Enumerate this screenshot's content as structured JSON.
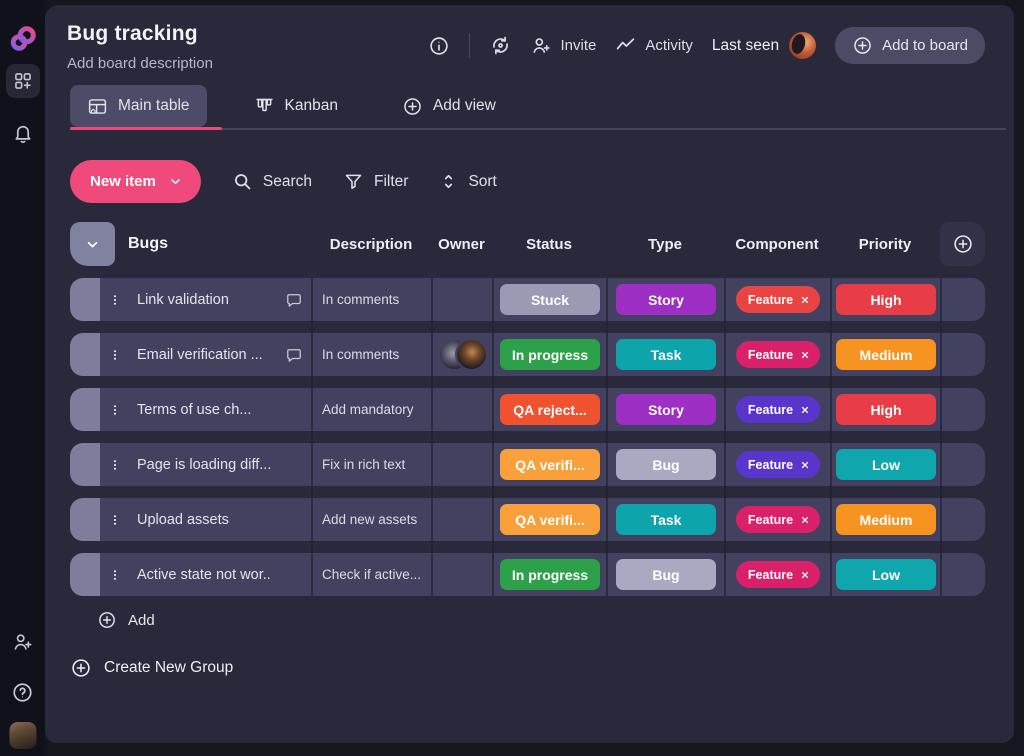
{
  "header": {
    "title": "Bug tracking",
    "description_placeholder": "Add board description",
    "invite_label": "Invite",
    "activity_label": "Activity",
    "last_seen_label": "Last seen",
    "add_to_board_label": "Add to board"
  },
  "tabs": {
    "main_table": "Main table",
    "kanban": "Kanban",
    "add_view": "Add view"
  },
  "toolbar": {
    "new_item_label": "New item",
    "search_label": "Search",
    "filter_label": "Filter",
    "sort_label": "Sort"
  },
  "table": {
    "group_title": "Bugs",
    "columns": {
      "description": "Description",
      "owner": "Owner",
      "status": "Status",
      "type": "Type",
      "component": "Component",
      "priority": "Priority"
    },
    "rows": [
      {
        "name": "Link validation",
        "description": "In comments",
        "status": {
          "label": "Stuck",
          "color": "#9a9ab5"
        },
        "type": {
          "label": "Story",
          "color": "#9e2fc4"
        },
        "component": {
          "label": "Feature",
          "color": "#e84444"
        },
        "priority": {
          "label": "High",
          "color": "#e83c46"
        }
      },
      {
        "name": "Email verification ...",
        "description": "In comments",
        "status": {
          "label": "In progress",
          "color": "#2da04a"
        },
        "type": {
          "label": "Task",
          "color": "#0da4ab"
        },
        "component": {
          "label": "Feature",
          "color": "#d92069"
        },
        "priority": {
          "label": "Medium",
          "color": "#f79421"
        }
      },
      {
        "name": "Terms of use ch...",
        "description": "Add mandatory",
        "status": {
          "label": "QA reject...",
          "color": "#f0512f"
        },
        "type": {
          "label": "Story",
          "color": "#9e2fc4"
        },
        "component": {
          "label": "Feature",
          "color": "#5a35cc"
        },
        "priority": {
          "label": "High",
          "color": "#e83c46"
        }
      },
      {
        "name": "Page is loading diff...",
        "description": "Fix in rich text",
        "status": {
          "label": "QA verifi...",
          "color": "#f9a03a"
        },
        "type": {
          "label": "Bug",
          "color": "#a9a9c2"
        },
        "component": {
          "label": "Feature",
          "color": "#5a35cc"
        },
        "priority": {
          "label": "Low",
          "color": "#0fa6ad"
        }
      },
      {
        "name": "Upload assets",
        "description": "Add new assets",
        "status": {
          "label": "QA verifi...",
          "color": "#f9a03a"
        },
        "type": {
          "label": "Task",
          "color": "#0da4ab"
        },
        "component": {
          "label": "Feature",
          "color": "#d92069"
        },
        "priority": {
          "label": "Medium",
          "color": "#f79421"
        }
      },
      {
        "name": "Active state not wor..",
        "description": "Check if active...",
        "status": {
          "label": "In progress",
          "color": "#2da04a"
        },
        "type": {
          "label": "Bug",
          "color": "#a9a9c2"
        },
        "component": {
          "label": "Feature",
          "color": "#d92069"
        },
        "priority": {
          "label": "Low",
          "color": "#0fa6ad"
        }
      }
    ],
    "add_label": "Add"
  },
  "footer": {
    "create_group_label": "Create New Group"
  },
  "colors": {
    "accent_pink": "#ef4a7b",
    "active_tab_underline": "#ee4b74",
    "panel_background": "#29293b",
    "row_background": "#424260",
    "row_handle": "#7e7e9c"
  }
}
